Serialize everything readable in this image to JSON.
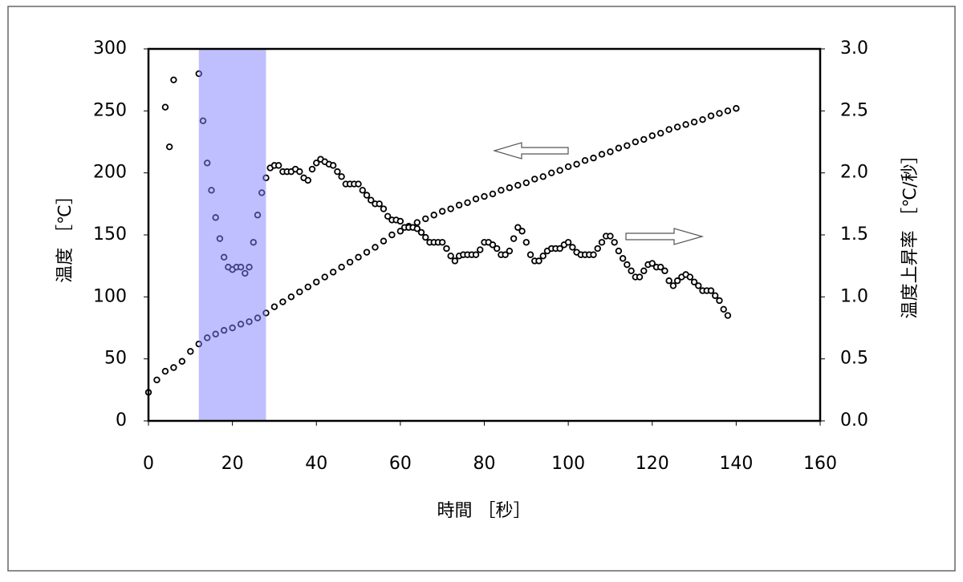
{
  "chart_data": {
    "type": "scatter",
    "x_label": "時間 ［秒］",
    "y_label": "温度 ［℃］",
    "y2_label": "温度上昇率 ［℃/秒］",
    "xlim": [
      0,
      160
    ],
    "xticks": [
      0,
      20,
      40,
      60,
      80,
      100,
      120,
      140,
      160
    ],
    "ylim": [
      0,
      300
    ],
    "yticks": [
      0,
      50,
      100,
      150,
      200,
      250,
      300
    ],
    "y2lim": [
      0,
      3
    ],
    "y2ticks": [
      {
        "value": 0,
        "label": "0.0"
      },
      {
        "value": 0.5,
        "label": "0.5"
      },
      {
        "value": 1,
        "label": "1.0"
      },
      {
        "value": 1.5,
        "label": "1.5"
      },
      {
        "value": 2,
        "label": "2.0"
      },
      {
        "value": 2.5,
        "label": "2.5"
      },
      {
        "value": 3,
        "label": "3.0"
      }
    ],
    "highlight_x": [
      12,
      28
    ],
    "highlight_color": "#8080ff",
    "series": [
      {
        "color": "#000000",
        "x": [
          0,
          2,
          4,
          6,
          8,
          10,
          12,
          14,
          16,
          18,
          20,
          22,
          24,
          26,
          28,
          30,
          32,
          34,
          36,
          38,
          40,
          42,
          44,
          46,
          48,
          50,
          52,
          54,
          56,
          58,
          60,
          62,
          64,
          66,
          68,
          70,
          72,
          74,
          76,
          78,
          80,
          82,
          84,
          86,
          88,
          90,
          92,
          94,
          96,
          98,
          100,
          102,
          104,
          106,
          108,
          110,
          112,
          114,
          116,
          118,
          120,
          122,
          124,
          126,
          128,
          130,
          132,
          134,
          136,
          138,
          140
        ],
        "values": [
          23,
          33,
          40,
          43,
          48,
          56,
          62,
          67,
          70,
          73,
          75,
          78,
          80,
          83,
          87,
          92,
          96,
          100,
          104,
          108,
          112,
          116,
          120,
          124,
          128,
          132,
          136,
          140,
          145,
          150,
          153,
          157,
          160,
          163,
          166,
          169,
          171,
          174,
          176,
          179,
          181,
          183,
          186,
          188,
          190,
          192,
          195,
          197,
          200,
          202,
          205,
          207,
          210,
          212,
          215,
          217,
          220,
          222,
          225,
          227,
          230,
          232,
          235,
          237,
          239,
          241,
          243,
          246,
          248,
          250,
          252
        ]
      },
      {
        "color": "#000000",
        "axis": "y2",
        "x": [
          4,
          5,
          6,
          12,
          13,
          14,
          15,
          16,
          17,
          18,
          19,
          20,
          21,
          22,
          23,
          24,
          25,
          26,
          27,
          28,
          29,
          30,
          31,
          32,
          33,
          34,
          35,
          36,
          37,
          38,
          39,
          40,
          41,
          42,
          43,
          44,
          45,
          46,
          47,
          48,
          49,
          50,
          51,
          52,
          53,
          54,
          55,
          56,
          57,
          58,
          59,
          60,
          61,
          62,
          63,
          64,
          65,
          66,
          67,
          68,
          69,
          70,
          71,
          72,
          73,
          74,
          75,
          76,
          77,
          78,
          79,
          80,
          81,
          82,
          83,
          84,
          85,
          86,
          87,
          88,
          89,
          90,
          91,
          92,
          93,
          94,
          95,
          96,
          97,
          98,
          99,
          100,
          101,
          102,
          103,
          104,
          105,
          106,
          107,
          108,
          109,
          110,
          111,
          112,
          113,
          114,
          115,
          116,
          117,
          118,
          119,
          120,
          121,
          122,
          123,
          124,
          125,
          126,
          127,
          128,
          129,
          130,
          131,
          132,
          133,
          134,
          135,
          136,
          137,
          138
        ],
        "values": [
          2.53,
          2.21,
          2.75,
          2.8,
          2.42,
          2.08,
          1.86,
          1.64,
          1.47,
          1.32,
          1.24,
          1.22,
          1.24,
          1.24,
          1.19,
          1.24,
          1.44,
          1.66,
          1.84,
          1.96,
          2.04,
          2.06,
          2.06,
          2.01,
          2.01,
          2.01,
          2.03,
          2.01,
          1.96,
          1.94,
          2.03,
          2.08,
          2.11,
          2.09,
          2.07,
          2.06,
          2.01,
          1.97,
          1.91,
          1.91,
          1.91,
          1.91,
          1.86,
          1.82,
          1.78,
          1.75,
          1.75,
          1.71,
          1.65,
          1.62,
          1.62,
          1.61,
          1.56,
          1.56,
          1.56,
          1.55,
          1.52,
          1.48,
          1.44,
          1.44,
          1.44,
          1.44,
          1.39,
          1.33,
          1.29,
          1.33,
          1.34,
          1.34,
          1.34,
          1.34,
          1.38,
          1.44,
          1.44,
          1.42,
          1.39,
          1.34,
          1.34,
          1.37,
          1.47,
          1.56,
          1.53,
          1.44,
          1.34,
          1.29,
          1.29,
          1.33,
          1.37,
          1.39,
          1.39,
          1.39,
          1.42,
          1.44,
          1.4,
          1.36,
          1.34,
          1.34,
          1.34,
          1.34,
          1.39,
          1.44,
          1.49,
          1.49,
          1.44,
          1.37,
          1.31,
          1.26,
          1.21,
          1.16,
          1.16,
          1.21,
          1.26,
          1.27,
          1.24,
          1.24,
          1.21,
          1.13,
          1.09,
          1.13,
          1.16,
          1.18,
          1.16,
          1.12,
          1.09,
          1.05,
          1.05,
          1.05,
          1.01,
          0.97,
          0.9,
          0.85
        ]
      }
    ]
  }
}
